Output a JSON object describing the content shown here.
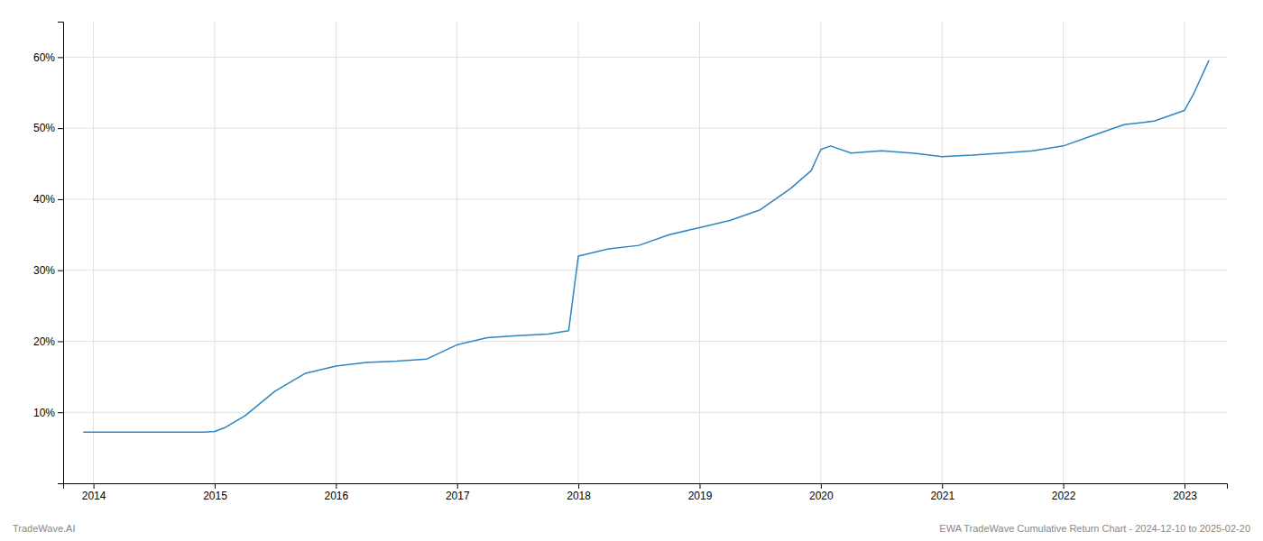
{
  "chart_data": {
    "type": "line",
    "annotations": [
      "TradeWave.AI",
      "EWA TradeWave Cumulative Return Chart - 2024-12-10 to 2025-02-20"
    ],
    "x": [
      2013.92,
      2014.08,
      2014.25,
      2014.5,
      2014.75,
      2014.92,
      2015.0,
      2015.08,
      2015.25,
      2015.5,
      2015.75,
      2016.0,
      2016.25,
      2016.5,
      2016.75,
      2017.0,
      2017.25,
      2017.5,
      2017.75,
      2017.92,
      2018.0,
      2018.25,
      2018.5,
      2018.75,
      2019.0,
      2019.25,
      2019.5,
      2019.75,
      2019.92,
      2020.0,
      2020.08,
      2020.25,
      2020.5,
      2020.75,
      2021.0,
      2021.25,
      2021.5,
      2021.75,
      2022.0,
      2022.25,
      2022.5,
      2022.75,
      2023.0,
      2023.08,
      2023.2
    ],
    "values": [
      7.2,
      7.2,
      7.2,
      7.2,
      7.2,
      7.2,
      7.3,
      7.8,
      9.5,
      13.0,
      15.5,
      16.5,
      17.0,
      17.2,
      17.5,
      19.5,
      20.5,
      20.8,
      21.0,
      21.5,
      32.0,
      33.0,
      33.5,
      35.0,
      36.0,
      37.0,
      38.5,
      41.5,
      44.0,
      47.0,
      47.5,
      46.5,
      46.8,
      46.5,
      46.0,
      46.2,
      46.5,
      46.8,
      47.5,
      49.0,
      50.5,
      51.0,
      52.5,
      55.0,
      59.5
    ],
    "color": "#2e86c1",
    "xlim": [
      2013.75,
      2023.35
    ],
    "ylim": [
      0,
      65
    ],
    "xticks": [
      2014,
      2015,
      2016,
      2017,
      2018,
      2019,
      2020,
      2021,
      2022,
      2023
    ],
    "yticks": [
      {
        "value": 10,
        "label": "10%"
      },
      {
        "value": 20,
        "label": "20%"
      },
      {
        "value": 30,
        "label": "30%"
      },
      {
        "value": 40,
        "label": "40%"
      },
      {
        "value": 50,
        "label": "50%"
      },
      {
        "value": 60,
        "label": "60%"
      }
    ],
    "grid": true
  }
}
